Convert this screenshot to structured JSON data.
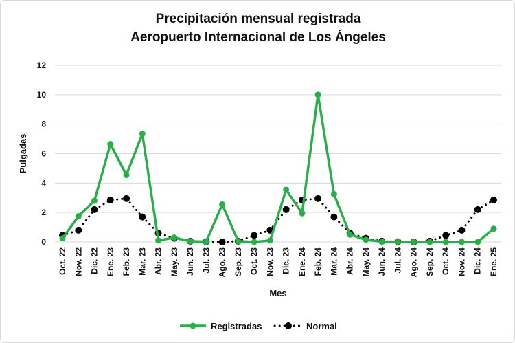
{
  "chart_data": {
    "type": "line",
    "title": [
      "Precipitación mensual registrada",
      "Aeropuerto Internacional de Los Ángeles"
    ],
    "xlabel": "Mes",
    "ylabel": "Pulgadas",
    "ylim": [
      0,
      12
    ],
    "yticks": [
      0,
      2,
      4,
      6,
      8,
      10,
      12
    ],
    "grid": true,
    "legend_position": "bottom",
    "categories": [
      "Oct. 22",
      "Nov. 22",
      "Dic. 22",
      "Ene. 23",
      "Feb. 23",
      "Mar. 23",
      "Abr. 23",
      "May. 23",
      "Jun. 23",
      "Jul. 23",
      "Ago. 23",
      "Sep. 23",
      "Oct. 23",
      "Nov. 23",
      "Dic. 23",
      "Ene. 24",
      "Feb. 24",
      "Mar. 24",
      "Abr. 24",
      "May. 24",
      "Jun. 24",
      "Jul. 24",
      "Ago. 24",
      "Sep. 24",
      "Oct. 24",
      "Nov. 24",
      "Dic. 24",
      "Ene. 25"
    ],
    "series": [
      {
        "name": "Registradas",
        "color": "#2aae4a",
        "style": "solid",
        "values": [
          0.25,
          1.75,
          2.8,
          6.65,
          4.55,
          7.35,
          0.1,
          0.3,
          0.05,
          0.02,
          2.55,
          0.05,
          0.0,
          0.1,
          3.55,
          1.95,
          10.0,
          3.25,
          0.5,
          0.15,
          0.02,
          0.02,
          0.0,
          0.0,
          0.0,
          0.0,
          0.0,
          0.9
        ]
      },
      {
        "name": "Normal",
        "color": "#000000",
        "style": "dotted",
        "values": [
          0.45,
          0.8,
          2.2,
          2.85,
          2.95,
          1.7,
          0.6,
          0.25,
          0.05,
          0.02,
          0.0,
          0.05,
          0.45,
          0.8,
          2.2,
          2.85,
          2.95,
          1.7,
          0.6,
          0.25,
          0.05,
          0.02,
          0.0,
          0.05,
          0.45,
          0.8,
          2.2,
          2.85
        ]
      }
    ]
  }
}
